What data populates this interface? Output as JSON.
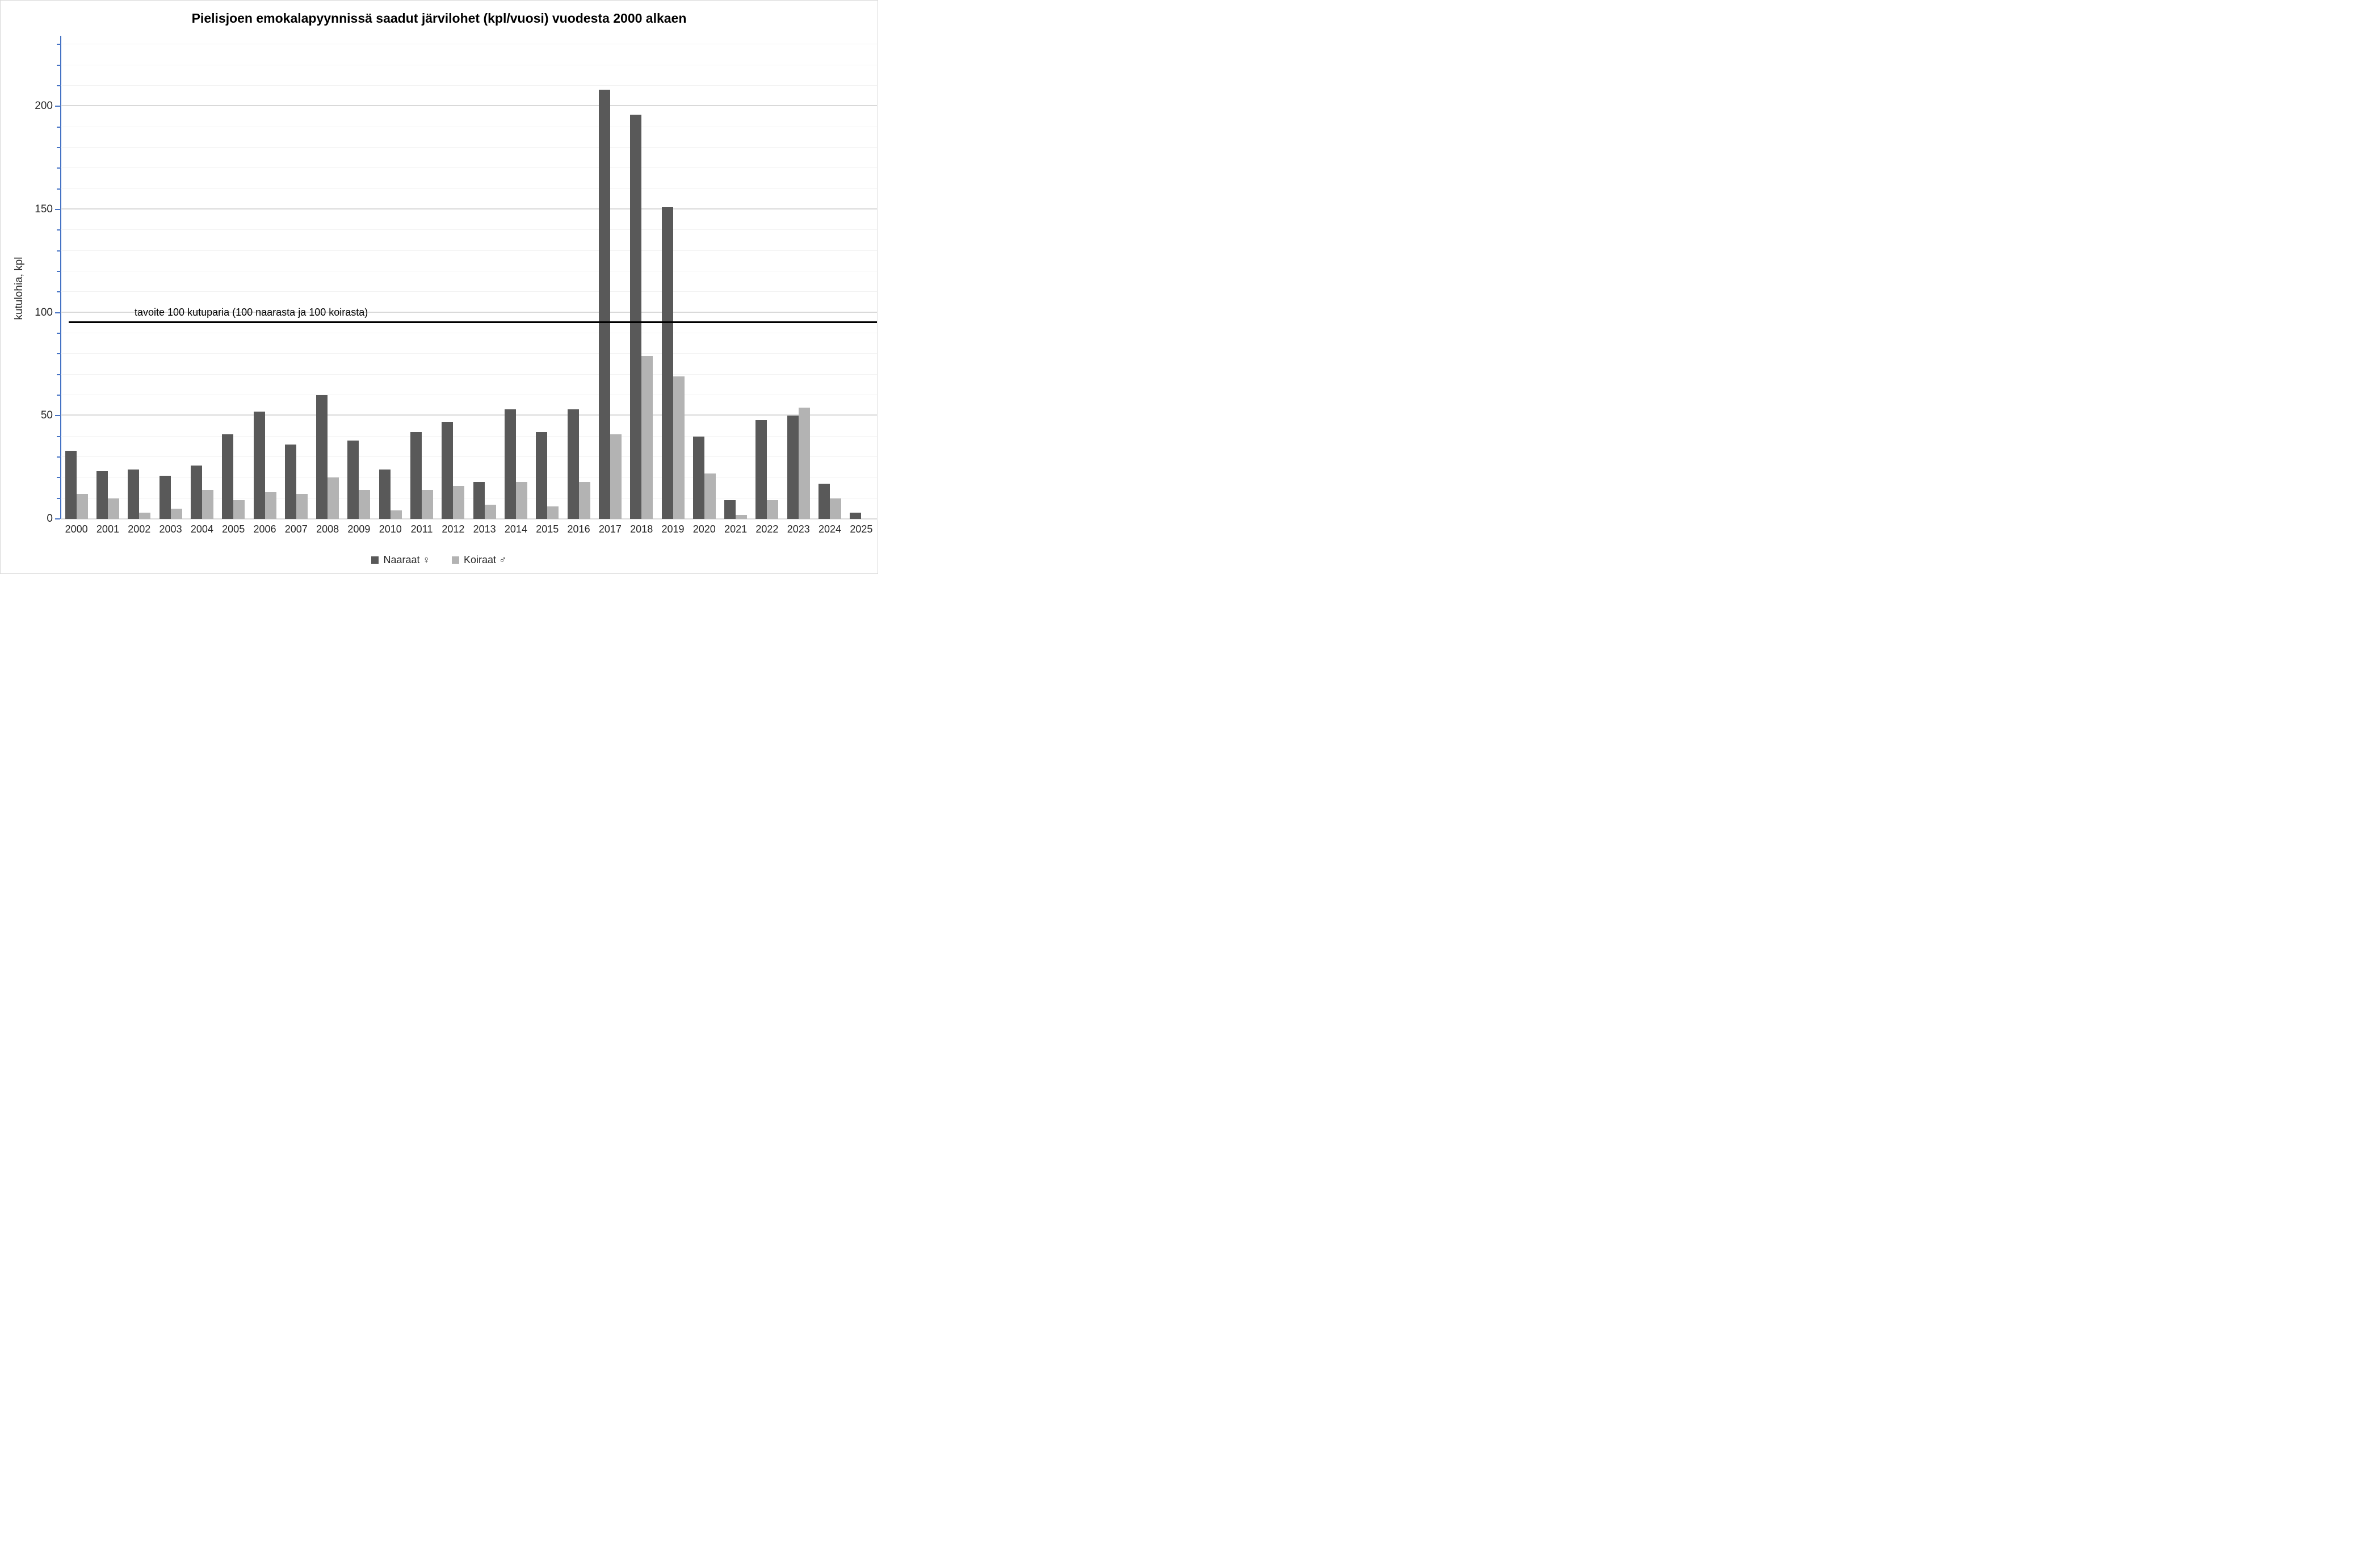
{
  "chart_data": {
    "type": "bar",
    "title": "Pielisjoen emokalapyynnissä saadut järvilohet (kpl/vuosi) vuodesta 2000 alkaen",
    "ylabel": "kutulohia, kpl",
    "xlabel": "",
    "categories": [
      "2000",
      "2001",
      "2002",
      "2003",
      "2004",
      "2005",
      "2006",
      "2007",
      "2008",
      "2009",
      "2010",
      "2011",
      "2012",
      "2013",
      "2014",
      "2015",
      "2016",
      "2017",
      "2018",
      "2019",
      "2020",
      "2021",
      "2022",
      "2023",
      "2024",
      "2025"
    ],
    "series": [
      {
        "name": "Naaraat ♀",
        "color": "#595959",
        "values": [
          33,
          23,
          24,
          21,
          26,
          41,
          52,
          36,
          60,
          38,
          24,
          42,
          47,
          18,
          53,
          42,
          53,
          208,
          196,
          151,
          40,
          9,
          48,
          50,
          17,
          3
        ]
      },
      {
        "name": "Koiraat ♂",
        "color": "#b3b3b3",
        "values": [
          12,
          10,
          3,
          5,
          14,
          9,
          13,
          12,
          20,
          14,
          4,
          14,
          16,
          7,
          18,
          6,
          18,
          41,
          79,
          69,
          22,
          2,
          9,
          54,
          10,
          0
        ]
      }
    ],
    "ylim": [
      0,
      232
    ],
    "yticks": [
      0,
      50,
      100,
      150,
      200
    ],
    "minor_tick_unit": 10,
    "grid": "horizontal-major-and-faint-minor",
    "legend_position": "bottom",
    "axis_color": "#4472c4",
    "major_grid_color": "#d9d9d9",
    "minor_grid_color": "#f2f2f2",
    "target_line": {
      "value": 95,
      "label": "tavoite 100 kutuparia (100 naarasta ja 100 koirasta)",
      "color": "#000000"
    }
  }
}
